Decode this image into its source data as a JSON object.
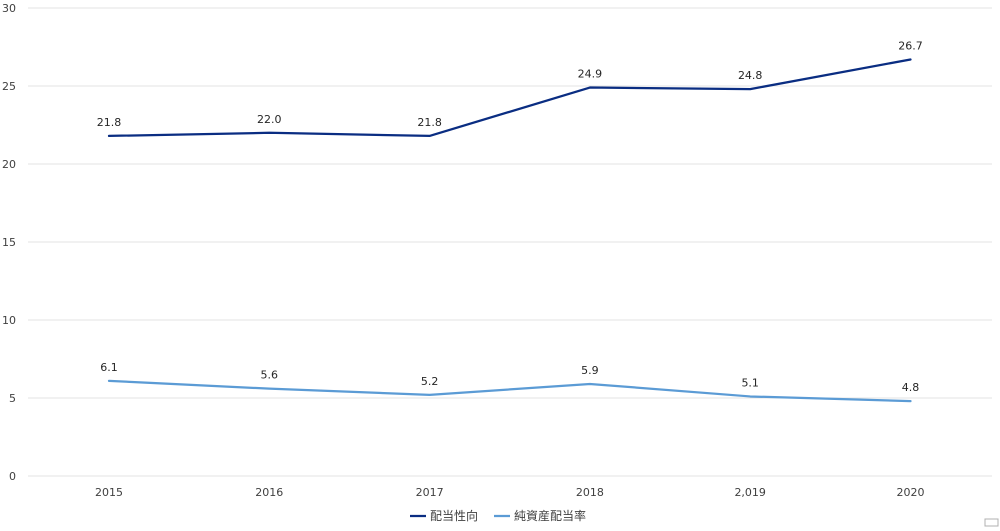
{
  "chart_data": {
    "type": "line",
    "categories": [
      "2015",
      "2016",
      "2017",
      "2018",
      "2,019",
      "2020"
    ],
    "series": [
      {
        "name": "配当性向",
        "values": [
          21.8,
          22.0,
          21.8,
          24.9,
          24.8,
          26.7
        ],
        "labels": [
          "21.8",
          "22.0",
          "21.8",
          "24.9",
          "24.8",
          "26.7"
        ],
        "color": "#0a2d82"
      },
      {
        "name": "純資産配当率",
        "values": [
          6.1,
          5.6,
          5.2,
          5.9,
          5.1,
          4.8
        ],
        "labels": [
          "6.1",
          "5.6",
          "5.2",
          "5.9",
          "5.1",
          "4.8"
        ],
        "color": "#5b9bd5"
      }
    ],
    "yticks": [
      "0",
      "5",
      "10",
      "15",
      "20",
      "25",
      "30"
    ],
    "ylim": [
      0,
      30
    ],
    "grid": true,
    "legend_position": "bottom"
  }
}
